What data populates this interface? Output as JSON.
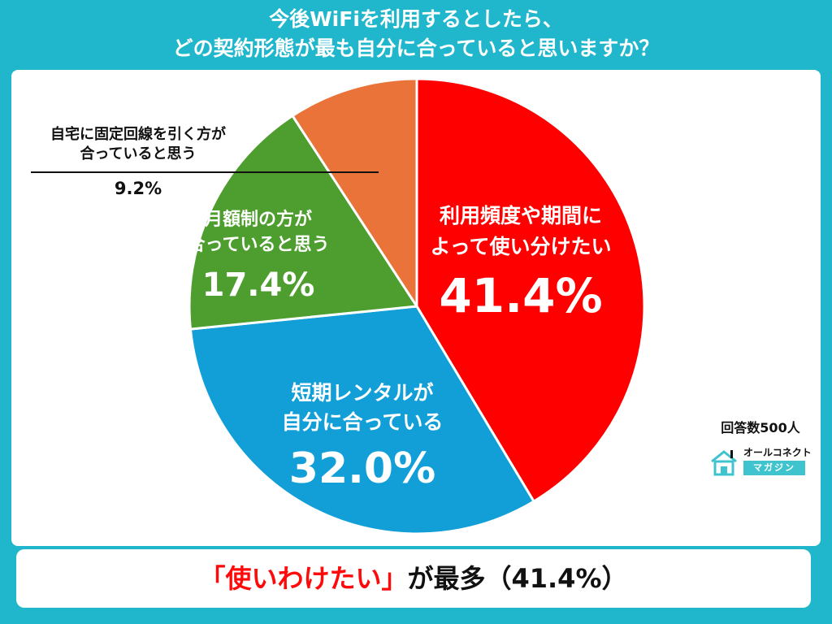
{
  "title_line1": "今後WiFiを利用するとしたら、",
  "title_line2": "どの契約形態が最も自分に合っていると思いますか？",
  "respondents": "回答数500人",
  "logo": {
    "name": "オールコネクト",
    "sub": "マガジン",
    "icon": "house-icon"
  },
  "footer": {
    "highlight": "「使いわけたい」",
    "rest": "が最多（41.4%）"
  },
  "colors": {
    "background": "#20b6cc",
    "footer_highlight": "#ff0a0a"
  },
  "chart_data": {
    "type": "pie",
    "start_angle_deg": 0,
    "direction": "clockwise",
    "slices": [
      {
        "lines": [
          "利用頻度や期間に",
          "よって使い分けたい"
        ],
        "value": 41.4,
        "pct_label": "41.4%",
        "color": "#ff0000"
      },
      {
        "lines": [
          "短期レンタルが",
          "自分に合っている"
        ],
        "value": 32.0,
        "pct_label": "32.0%",
        "color": "#129fd8"
      },
      {
        "lines": [
          "月額制の方が",
          "合っていると思う"
        ],
        "value": 17.4,
        "pct_label": "17.4%",
        "color": "#4e9e2f"
      },
      {
        "lines": [
          "自宅に固定回線を引く方が",
          "合っていると思う"
        ],
        "value": 9.2,
        "pct_label": "9.2%",
        "color": "#ea733a"
      }
    ]
  }
}
